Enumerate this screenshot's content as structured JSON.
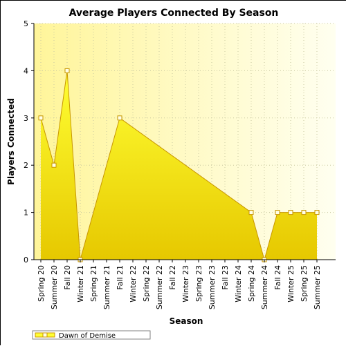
{
  "chart_data": {
    "type": "area",
    "title": "Average Players Connected By Season",
    "xlabel": "Season",
    "ylabel": "Players Connected",
    "ylim": [
      0,
      5
    ],
    "yticks": [
      "0",
      "1",
      "2",
      "3",
      "4",
      "5"
    ],
    "grid": true,
    "legend_position": "bottom-left",
    "categories": [
      "Spring 20",
      "Summer 20",
      "Fall 20",
      "Winter 21",
      "Spring 21",
      "Summer 21",
      "Fall 21",
      "Winter 22",
      "Spring 22",
      "Summer 22",
      "Fall 22",
      "Winter 23",
      "Spring 23",
      "Summer 23",
      "Fall 23",
      "Winter 24",
      "Spring 24",
      "Summer 24",
      "Fall 24",
      "Winter 25",
      "Spring 25",
      "Summer 25"
    ],
    "series": [
      {
        "name": "Dawn of Demise",
        "points": [
          {
            "x": "Spring 20",
            "y": 3
          },
          {
            "x": "Summer 20",
            "y": 2
          },
          {
            "x": "Fall 20",
            "y": 4
          },
          {
            "x": "Winter 21",
            "y": 0
          },
          {
            "x": "Fall 21",
            "y": 3
          },
          {
            "x": "Spring 24",
            "y": 1
          },
          {
            "x": "Summer 24",
            "y": 0
          },
          {
            "x": "Fall 24",
            "y": 1
          },
          {
            "x": "Winter 25",
            "y": 1
          },
          {
            "x": "Spring 25",
            "y": 1
          },
          {
            "x": "Summer 25",
            "y": 1
          }
        ]
      }
    ],
    "colors": {
      "area_top": "#ffff33",
      "area_bottom": "#e6c800",
      "line": "#c89600",
      "marker_fill": "#ffffe8",
      "plot_bg_left": "#fff59a",
      "plot_bg_right": "#fffff0"
    }
  }
}
